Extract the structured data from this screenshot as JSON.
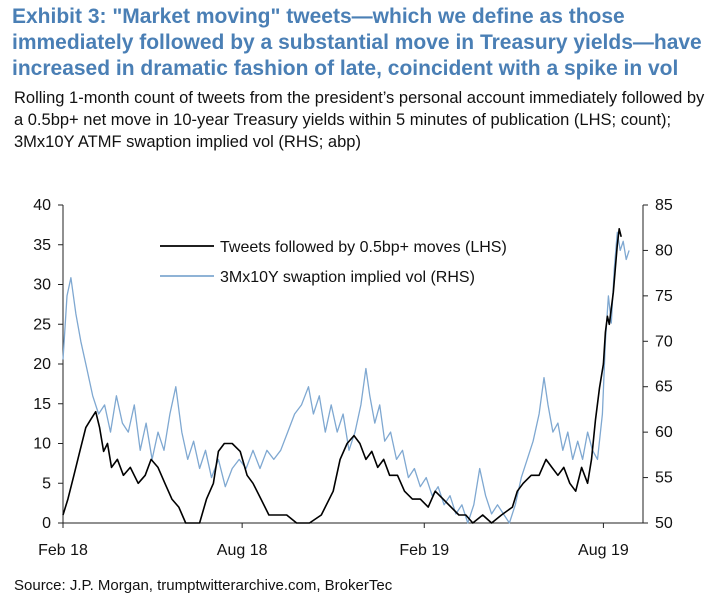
{
  "header": {
    "title": "Exhibit 3: \"Market moving\" tweets—which we define as those immediately followed by a substantial move in Treasury yields—have increased in dramatic fashion of late, coincident with a spike in vol",
    "subtitle": "Rolling 1-month count of tweets from the president’s personal account immediately followed by a 0.5bp+ net move in 10-year Treasury yields within 5 minutes of publication (LHS; count); 3Mx10Y ATMF swaption implied vol (RHS; abp)"
  },
  "source": "Source: J.P. Morgan, trumptwitterarchive.com, BrokerTec",
  "chart_data": {
    "type": "line",
    "x_range": [
      "2018-02-01",
      "2019-09-10"
    ],
    "x_ticks": [
      {
        "date": "2018-02-01",
        "label": "Feb 18"
      },
      {
        "date": "2018-08-01",
        "label": "Aug 18"
      },
      {
        "date": "2019-02-01",
        "label": "Feb 19"
      },
      {
        "date": "2019-08-01",
        "label": "Aug 19"
      }
    ],
    "y_left": {
      "range": [
        0,
        40
      ],
      "ticks": [
        0,
        5,
        10,
        15,
        20,
        25,
        30,
        35,
        40
      ]
    },
    "y_right": {
      "range": [
        50,
        85
      ],
      "ticks": [
        50,
        55,
        60,
        65,
        70,
        75,
        80,
        85
      ]
    },
    "legend_position": "top-center",
    "series": [
      {
        "name": "Tweets followed by 0.5bp+ moves (LHS)",
        "axis": "left",
        "color": "#000000",
        "points": [
          [
            "2018-02-01",
            1
          ],
          [
            "2018-02-06",
            3
          ],
          [
            "2018-02-12",
            6
          ],
          [
            "2018-02-18",
            9
          ],
          [
            "2018-02-24",
            12
          ],
          [
            "2018-03-01",
            13
          ],
          [
            "2018-03-06",
            14
          ],
          [
            "2018-03-10",
            12
          ],
          [
            "2018-03-14",
            9
          ],
          [
            "2018-03-18",
            10
          ],
          [
            "2018-03-22",
            7
          ],
          [
            "2018-03-28",
            8
          ],
          [
            "2018-04-03",
            6
          ],
          [
            "2018-04-10",
            7
          ],
          [
            "2018-04-18",
            5
          ],
          [
            "2018-04-25",
            6
          ],
          [
            "2018-05-01",
            8
          ],
          [
            "2018-05-08",
            7
          ],
          [
            "2018-05-15",
            5
          ],
          [
            "2018-05-22",
            3
          ],
          [
            "2018-05-29",
            2
          ],
          [
            "2018-06-05",
            0
          ],
          [
            "2018-06-12",
            0
          ],
          [
            "2018-06-19",
            0
          ],
          [
            "2018-06-26",
            3
          ],
          [
            "2018-07-03",
            5
          ],
          [
            "2018-07-08",
            9
          ],
          [
            "2018-07-14",
            10
          ],
          [
            "2018-07-22",
            10
          ],
          [
            "2018-07-30",
            9
          ],
          [
            "2018-08-06",
            6
          ],
          [
            "2018-08-12",
            5
          ],
          [
            "2018-08-20",
            3
          ],
          [
            "2018-08-28",
            1
          ],
          [
            "2018-09-05",
            1
          ],
          [
            "2018-09-15",
            1
          ],
          [
            "2018-09-25",
            0
          ],
          [
            "2018-10-08",
            0
          ],
          [
            "2018-10-20",
            1
          ],
          [
            "2018-11-01",
            4
          ],
          [
            "2018-11-08",
            8
          ],
          [
            "2018-11-15",
            10
          ],
          [
            "2018-11-22",
            11
          ],
          [
            "2018-11-28",
            10
          ],
          [
            "2018-12-04",
            8
          ],
          [
            "2018-12-10",
            9
          ],
          [
            "2018-12-16",
            7
          ],
          [
            "2018-12-22",
            8
          ],
          [
            "2018-12-28",
            6
          ],
          [
            "2019-01-05",
            6
          ],
          [
            "2019-01-12",
            4
          ],
          [
            "2019-01-20",
            3
          ],
          [
            "2019-01-28",
            3
          ],
          [
            "2019-02-05",
            2
          ],
          [
            "2019-02-12",
            4
          ],
          [
            "2019-02-20",
            3
          ],
          [
            "2019-02-28",
            2
          ],
          [
            "2019-03-08",
            1
          ],
          [
            "2019-03-15",
            1
          ],
          [
            "2019-03-22",
            0
          ],
          [
            "2019-04-01",
            1
          ],
          [
            "2019-04-10",
            0
          ],
          [
            "2019-04-20",
            1
          ],
          [
            "2019-05-01",
            2
          ],
          [
            "2019-05-06",
            4
          ],
          [
            "2019-05-12",
            5
          ],
          [
            "2019-05-20",
            6
          ],
          [
            "2019-05-28",
            6
          ],
          [
            "2019-06-04",
            8
          ],
          [
            "2019-06-10",
            7
          ],
          [
            "2019-06-16",
            6
          ],
          [
            "2019-06-22",
            7
          ],
          [
            "2019-06-28",
            5
          ],
          [
            "2019-07-04",
            4
          ],
          [
            "2019-07-10",
            7
          ],
          [
            "2019-07-16",
            5
          ],
          [
            "2019-07-20",
            8
          ],
          [
            "2019-07-24",
            13
          ],
          [
            "2019-07-28",
            17
          ],
          [
            "2019-08-01",
            20
          ],
          [
            "2019-08-03",
            24
          ],
          [
            "2019-08-05",
            26
          ],
          [
            "2019-08-07",
            25
          ],
          [
            "2019-08-09",
            27
          ],
          [
            "2019-08-11",
            29
          ],
          [
            "2019-08-13",
            32
          ],
          [
            "2019-08-15",
            35
          ],
          [
            "2019-08-17",
            37
          ],
          [
            "2019-08-19",
            36
          ]
        ]
      },
      {
        "name": "3Mx10Y swaption implied vol (RHS)",
        "axis": "right",
        "color": "#7fa8d1",
        "points": [
          [
            "2018-02-01",
            68
          ],
          [
            "2018-02-05",
            75
          ],
          [
            "2018-02-09",
            77
          ],
          [
            "2018-02-14",
            73
          ],
          [
            "2018-02-19",
            70
          ],
          [
            "2018-02-25",
            67
          ],
          [
            "2018-03-03",
            64
          ],
          [
            "2018-03-09",
            62
          ],
          [
            "2018-03-15",
            63
          ],
          [
            "2018-03-21",
            60
          ],
          [
            "2018-03-27",
            64
          ],
          [
            "2018-04-02",
            61
          ],
          [
            "2018-04-08",
            60
          ],
          [
            "2018-04-14",
            63
          ],
          [
            "2018-04-20",
            58
          ],
          [
            "2018-04-26",
            61
          ],
          [
            "2018-05-02",
            57
          ],
          [
            "2018-05-08",
            60
          ],
          [
            "2018-05-14",
            58
          ],
          [
            "2018-05-20",
            62
          ],
          [
            "2018-05-26",
            65
          ],
          [
            "2018-06-01",
            60
          ],
          [
            "2018-06-07",
            57
          ],
          [
            "2018-06-13",
            59
          ],
          [
            "2018-06-19",
            56
          ],
          [
            "2018-06-25",
            58
          ],
          [
            "2018-07-01",
            55
          ],
          [
            "2018-07-08",
            57
          ],
          [
            "2018-07-15",
            54
          ],
          [
            "2018-07-22",
            56
          ],
          [
            "2018-07-29",
            57
          ],
          [
            "2018-08-05",
            56
          ],
          [
            "2018-08-12",
            58
          ],
          [
            "2018-08-19",
            56
          ],
          [
            "2018-08-26",
            58
          ],
          [
            "2018-09-02",
            57
          ],
          [
            "2018-09-09",
            58
          ],
          [
            "2018-09-16",
            60
          ],
          [
            "2018-09-23",
            62
          ],
          [
            "2018-09-30",
            63
          ],
          [
            "2018-10-07",
            65
          ],
          [
            "2018-10-12",
            62
          ],
          [
            "2018-10-18",
            64
          ],
          [
            "2018-10-24",
            60
          ],
          [
            "2018-10-30",
            63
          ],
          [
            "2018-11-05",
            60
          ],
          [
            "2018-11-11",
            62
          ],
          [
            "2018-11-17",
            58
          ],
          [
            "2018-11-23",
            60
          ],
          [
            "2018-11-29",
            63
          ],
          [
            "2018-12-04",
            67
          ],
          [
            "2018-12-08",
            64
          ],
          [
            "2018-12-13",
            61
          ],
          [
            "2018-12-18",
            63
          ],
          [
            "2018-12-23",
            59
          ],
          [
            "2018-12-29",
            60
          ],
          [
            "2019-01-04",
            57
          ],
          [
            "2019-01-10",
            58
          ],
          [
            "2019-01-16",
            55
          ],
          [
            "2019-01-22",
            56
          ],
          [
            "2019-01-28",
            54
          ],
          [
            "2019-02-03",
            55
          ],
          [
            "2019-02-09",
            53
          ],
          [
            "2019-02-15",
            54
          ],
          [
            "2019-02-21",
            52
          ],
          [
            "2019-02-27",
            53
          ],
          [
            "2019-03-05",
            51
          ],
          [
            "2019-03-11",
            52
          ],
          [
            "2019-03-17",
            50
          ],
          [
            "2019-03-23",
            52
          ],
          [
            "2019-03-29",
            56
          ],
          [
            "2019-04-04",
            53
          ],
          [
            "2019-04-10",
            51
          ],
          [
            "2019-04-16",
            52
          ],
          [
            "2019-04-22",
            51
          ],
          [
            "2019-04-28",
            50
          ],
          [
            "2019-05-04",
            52
          ],
          [
            "2019-05-10",
            55
          ],
          [
            "2019-05-16",
            57
          ],
          [
            "2019-05-22",
            59
          ],
          [
            "2019-05-28",
            62
          ],
          [
            "2019-06-02",
            66
          ],
          [
            "2019-06-06",
            63
          ],
          [
            "2019-06-11",
            60
          ],
          [
            "2019-06-16",
            61
          ],
          [
            "2019-06-21",
            58
          ],
          [
            "2019-06-26",
            60
          ],
          [
            "2019-07-01",
            57
          ],
          [
            "2019-07-06",
            59
          ],
          [
            "2019-07-11",
            57
          ],
          [
            "2019-07-16",
            60
          ],
          [
            "2019-07-21",
            58
          ],
          [
            "2019-07-26",
            57
          ],
          [
            "2019-07-31",
            62
          ],
          [
            "2019-08-03",
            70
          ],
          [
            "2019-08-06",
            75
          ],
          [
            "2019-08-09",
            72
          ],
          [
            "2019-08-12",
            78
          ],
          [
            "2019-08-15",
            82
          ],
          [
            "2019-08-18",
            80
          ],
          [
            "2019-08-21",
            81
          ],
          [
            "2019-08-24",
            79
          ],
          [
            "2019-08-27",
            80
          ]
        ]
      }
    ]
  }
}
